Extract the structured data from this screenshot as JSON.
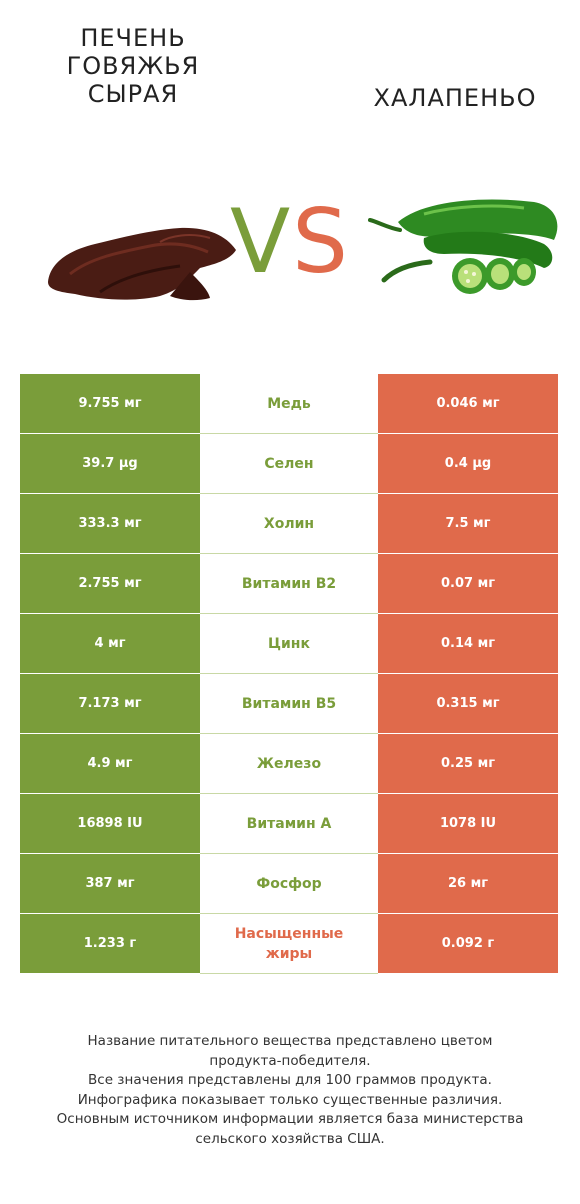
{
  "header": {
    "left_title": "ПЕЧЕНЬ ГОВЯЖЬЯ СЫРАЯ",
    "right_title": "ХАЛАПЕНЬО",
    "vs_v": "V",
    "vs_s": "S"
  },
  "colors": {
    "winner_left": "#7a9d3a",
    "winner_right": "#e06a4b"
  },
  "rows": [
    {
      "left": "9.755 мг",
      "name": "Медь",
      "right": "0.046 мг",
      "winner": "left"
    },
    {
      "left": "39.7 µg",
      "name": "Селен",
      "right": "0.4 µg",
      "winner": "left"
    },
    {
      "left": "333.3 мг",
      "name": "Холин",
      "right": "7.5 мг",
      "winner": "left"
    },
    {
      "left": "2.755 мг",
      "name": "Витамин B2",
      "right": "0.07 мг",
      "winner": "left"
    },
    {
      "left": "4 мг",
      "name": "Цинк",
      "right": "0.14 мг",
      "winner": "left"
    },
    {
      "left": "7.173 мг",
      "name": "Витамин B5",
      "right": "0.315 мг",
      "winner": "left"
    },
    {
      "left": "4.9 мг",
      "name": "Железо",
      "right": "0.25 мг",
      "winner": "left"
    },
    {
      "left": "16898 IU",
      "name": "Витамин A",
      "right": "1078 IU",
      "winner": "left"
    },
    {
      "left": "387 мг",
      "name": "Фосфор",
      "right": "26 мг",
      "winner": "left"
    },
    {
      "left": "1.233 г",
      "name": "Насыщенные жиры",
      "right": "0.092 г",
      "winner": "right"
    }
  ],
  "footer": {
    "line1": "Название питательного вещества представлено цветом",
    "line2": "продукта-победителя.",
    "line3": "Все значения представлены для 100 граммов продукта.",
    "line4": "Инфографика показывает только существенные различия.",
    "line5": "Основным источником информации является база министерства",
    "line6": "сельского хозяйства США."
  }
}
